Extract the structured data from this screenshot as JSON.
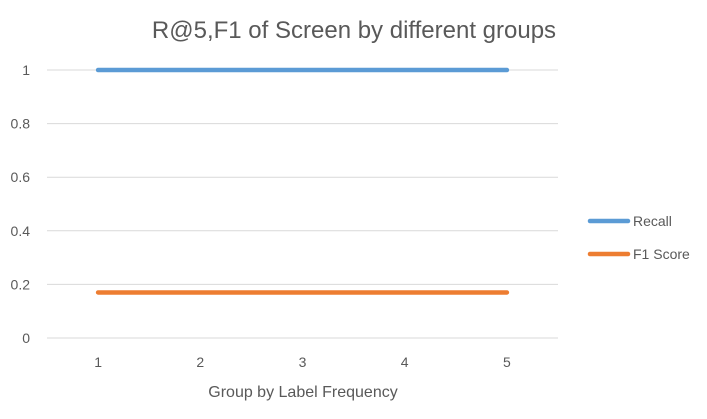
{
  "chart_data": {
    "type": "line",
    "title": "R@5,F1 of Screen by different groups",
    "xlabel": "Group by Label Frequency",
    "ylabel": "",
    "categories": [
      "1",
      "2",
      "3",
      "4",
      "5"
    ],
    "ylim": [
      0,
      1
    ],
    "yticks": [
      0,
      0.2,
      0.4,
      0.6,
      0.8,
      1
    ],
    "ytick_labels": [
      "0",
      "0.2",
      "0.4",
      "0.6",
      "0.8",
      "1"
    ],
    "grid": true,
    "legend_position": "right",
    "series": [
      {
        "name": "Recall",
        "values": [
          1,
          1,
          1,
          1,
          1
        ],
        "color": "#5B9BD5"
      },
      {
        "name": "F1 Score",
        "values": [
          0.17,
          0.17,
          0.17,
          0.17,
          0.17
        ],
        "color": "#ED7D31"
      }
    ],
    "gridline_color": "#D9D9D9"
  }
}
